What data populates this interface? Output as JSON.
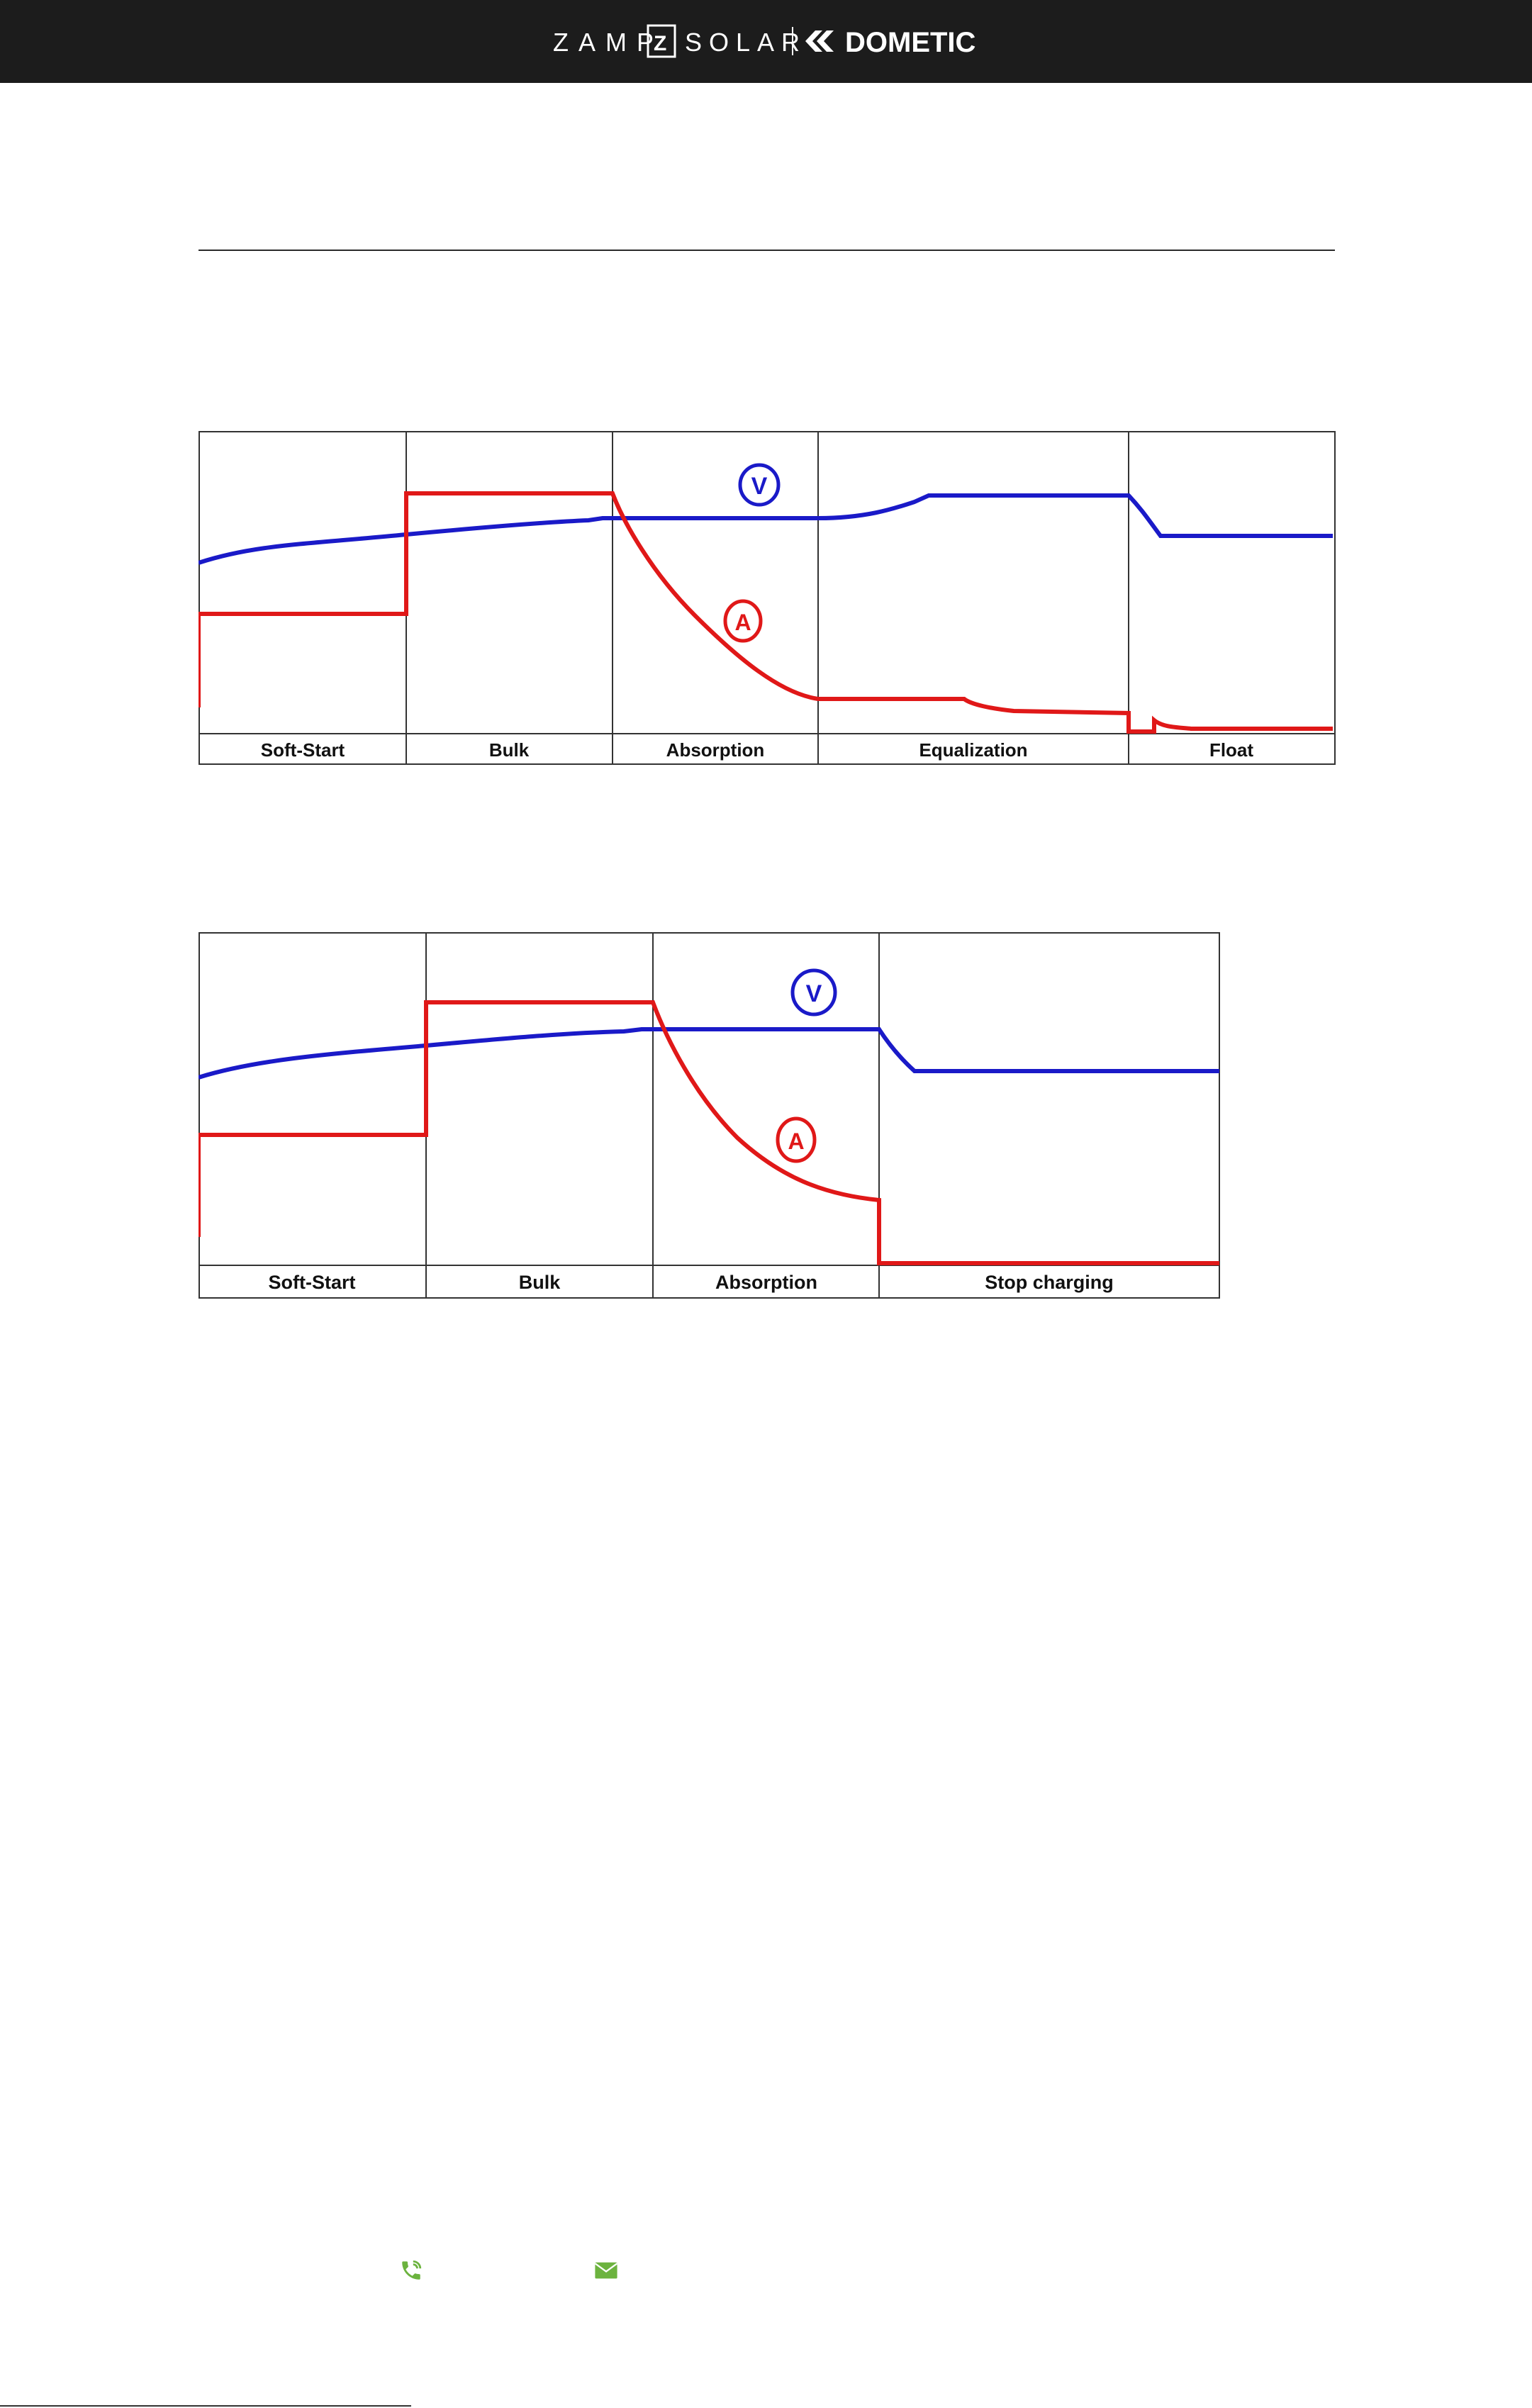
{
  "header": {
    "brand_left": "ZAMP",
    "brand_mark": "Z",
    "brand_mid": "SOLAR",
    "brand_right": "DOMETIC",
    "background": "#1c1c1c"
  },
  "diagrams": [
    {
      "stages": [
        "Soft-Start",
        "Bulk",
        "Absorption",
        "Equalization",
        "Float"
      ],
      "voltage_marker": "V",
      "current_marker": "A",
      "voltage_color": "#1a1ac8",
      "current_color": "#e01818"
    },
    {
      "stages": [
        "Soft-Start",
        "Bulk",
        "Absorption",
        "Stop charging"
      ],
      "voltage_marker": "V",
      "current_marker": "A",
      "voltage_color": "#1a1ac8",
      "current_color": "#e01818"
    }
  ],
  "footer": {
    "phone_icon": "phone-icon",
    "email_icon": "mail-icon",
    "icon_color": "#6cb33f"
  }
}
